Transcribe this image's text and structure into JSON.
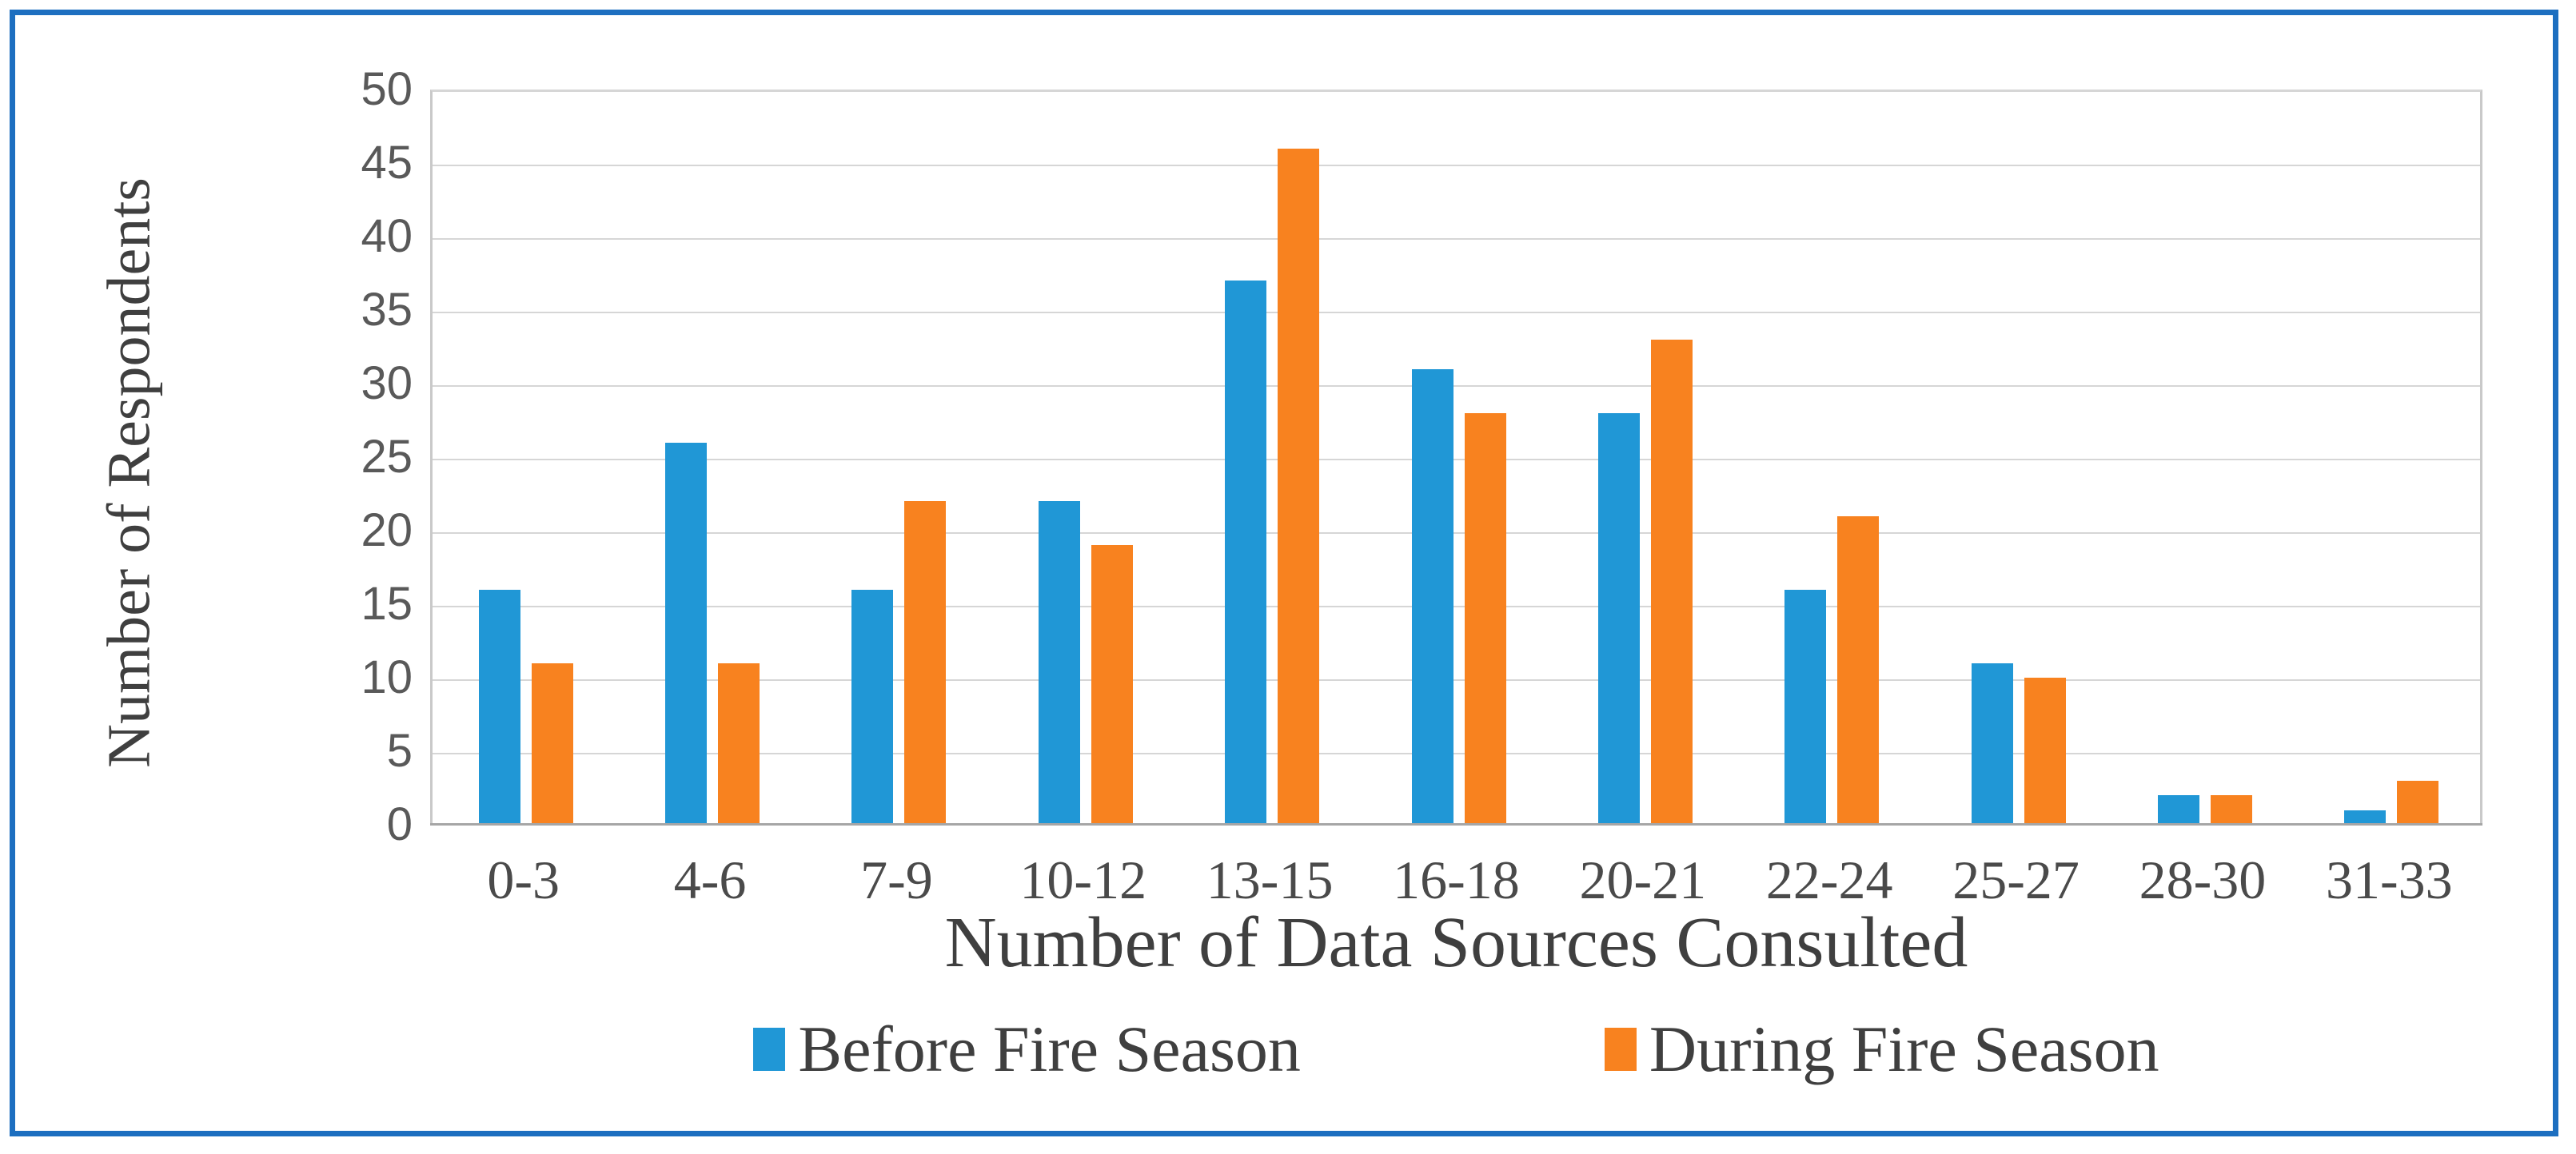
{
  "chart_data": {
    "type": "bar",
    "title": "",
    "categories": [
      "0-3",
      "4-6",
      "7-9",
      "10-12",
      "13-15",
      "16-18",
      "20-21",
      "22-24",
      "25-27",
      "28-30",
      "31-33"
    ],
    "series": [
      {
        "name": "Before Fire Season",
        "color": "#2097D6",
        "values": [
          16,
          26,
          16,
          22,
          37,
          31,
          28,
          16,
          11,
          2,
          1
        ]
      },
      {
        "name": "During Fire Season",
        "color": "#F8821F",
        "values": [
          11,
          11,
          22,
          19,
          46,
          28,
          33,
          21,
          10,
          2,
          3
        ]
      }
    ],
    "xlabel": "Number of Data Sources Consulted",
    "ylabel": "Number of Respondents",
    "ylim": [
      0,
      50
    ],
    "ytick_step": 5,
    "ytick_labels": [
      "0",
      "5",
      "10",
      "15",
      "20",
      "25",
      "30",
      "35",
      "40",
      "45",
      "50"
    ],
    "grid": "horizontal",
    "legend_position": "bottom"
  },
  "style": {
    "frame_border_color": "#1D6FC0",
    "gridline_color": "#D6D6D6",
    "axis_line_color": "#A6A6A6",
    "ytick_color": "#595959",
    "text_color": "#3F3F3F"
  }
}
